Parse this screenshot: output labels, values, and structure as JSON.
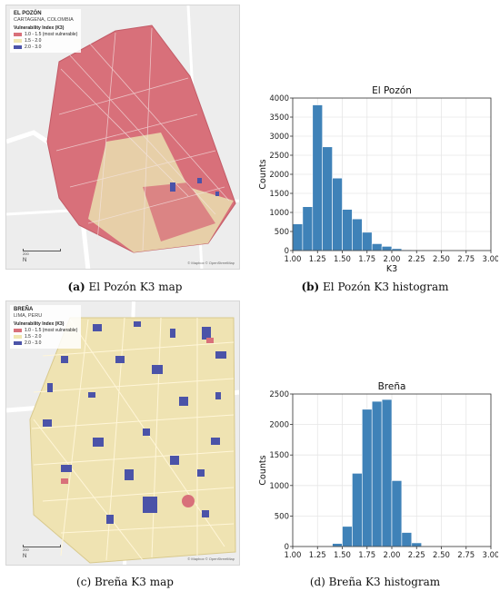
{
  "maps": [
    {
      "title": "EL POZÓN",
      "subtitle": "CARTAGENA, COLOMBIA",
      "legend_title": "Vulnerability Index (K3)",
      "legend_items": [
        {
          "label": "1.0 - 1.5 (most vulnerable)",
          "color": "#d8707a"
        },
        {
          "label": "1.5 - 2.0",
          "color": "#f0e6b0"
        },
        {
          "label": "2.0 - 3.0",
          "color": "#4b53a8"
        }
      ],
      "scale_label": "200",
      "attribution": "© Mapbox © OpenStreetMap",
      "north": "N"
    },
    {
      "title": "BREÑA",
      "subtitle": "LIMA, PERU",
      "legend_title": "Vulnerability Index (K3)",
      "legend_items": [
        {
          "label": "1.0 - 1.5 (most vulnerable)",
          "color": "#d8707a"
        },
        {
          "label": "1.5 - 2.0",
          "color": "#f0e6b0"
        },
        {
          "label": "2.0 - 3.0",
          "color": "#4b53a8"
        }
      ],
      "scale_label": "200",
      "attribution": "© Mapbox © OpenStreetMap",
      "north": "N"
    }
  ],
  "captions": {
    "a": {
      "letter": "(a)",
      "text": " El Pozón K3 map"
    },
    "b": {
      "letter": "(b)",
      "text": " El Pozón K3 histogram"
    },
    "c": {
      "letter": "(c)",
      "text": " Breña K3 map"
    },
    "d": {
      "letter": "(d)",
      "text": " Breña K3 histogram"
    }
  },
  "colors": {
    "bar": "#3f82b8",
    "grid": "#e6e6e6"
  },
  "chart_data": [
    {
      "type": "bar",
      "title": "El Pozón",
      "xlabel": "K3",
      "ylabel": "Counts",
      "bin_edges": [
        1.0,
        1.1,
        1.2,
        1.3,
        1.4,
        1.5,
        1.6,
        1.7,
        1.8,
        1.9,
        2.0,
        2.1,
        2.2,
        2.3,
        2.4
      ],
      "values": [
        700,
        1150,
        3820,
        2720,
        1900,
        1080,
        830,
        480,
        180,
        110,
        50,
        20,
        5,
        0
      ],
      "xlim": [
        1.0,
        3.0
      ],
      "ylim": [
        0,
        4000
      ],
      "xticks": [
        "1.00",
        "1.25",
        "1.50",
        "1.75",
        "2.00",
        "2.25",
        "2.50",
        "2.75",
        "3.00"
      ],
      "yticks": [
        "0",
        "500",
        "1000",
        "1500",
        "2000",
        "2500",
        "3000",
        "3500",
        "4000"
      ],
      "grid": true
    },
    {
      "type": "bar",
      "title": "Breña",
      "xlabel": "K3",
      "ylabel": "Counts",
      "bin_edges": [
        1.4,
        1.5,
        1.6,
        1.7,
        1.8,
        1.9,
        2.0,
        2.1,
        2.2,
        2.3
      ],
      "values": [
        50,
        330,
        1200,
        2250,
        2380,
        2410,
        1080,
        230,
        60
      ],
      "xlim": [
        1.0,
        3.0
      ],
      "ylim": [
        0,
        2500
      ],
      "xticks": [
        "1.00",
        "1.25",
        "1.50",
        "1.75",
        "2.00",
        "2.25",
        "2.50",
        "2.75",
        "3.00"
      ],
      "yticks": [
        "0",
        "500",
        "1000",
        "1500",
        "2000",
        "2500"
      ],
      "grid": true
    }
  ]
}
